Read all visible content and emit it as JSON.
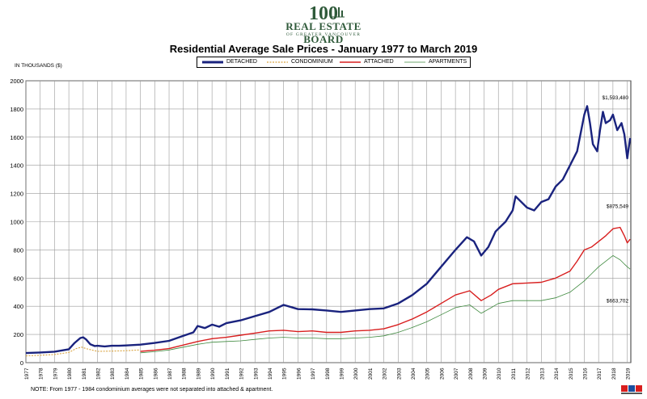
{
  "logo": {
    "mark": "100",
    "wordmark": "REAL ESTATE BOARD",
    "subtext": "OF GREATER VANCOUVER"
  },
  "title": "Residential Average Sale Prices  -  January 1977 to March 2019",
  "units_label": "IN THOUSANDS ($)",
  "note": "NOTE:  From 1977 - 1984 condominium averages were not separated into attached & apartment.",
  "colors": {
    "detached": "#1a237e",
    "condominium": "#d9a441",
    "attached": "#d81e1e",
    "apartments": "#3f8a3f",
    "grid": "#9a9a9a"
  },
  "chart_data": {
    "type": "line",
    "title": "Residential Average Sale Prices  -  January 1977 to March 2019",
    "xlabel": "",
    "ylabel": "IN THOUSANDS ($)",
    "xlim": [
      1977,
      2019.25
    ],
    "ylim": [
      0,
      2000
    ],
    "yticks": [
      0,
      200,
      400,
      600,
      800,
      1000,
      1200,
      1400,
      1600,
      1800,
      2000
    ],
    "xtick_labels": [
      "1977",
      "1978",
      "1979",
      "1980",
      "1981",
      "1982",
      "1983",
      "1984",
      "1985",
      "1986",
      "1987",
      "1988",
      "1989",
      "1990",
      "1991",
      "1992",
      "1993",
      "1994",
      "1995",
      "1996",
      "1997",
      "1998",
      "1999",
      "2000",
      "2001",
      "2002",
      "2003",
      "2004",
      "2005",
      "2006",
      "2007",
      "2008",
      "2009",
      "2010",
      "2011",
      "2012",
      "2013",
      "2014",
      "2015",
      "2016",
      "2017",
      "2018",
      "2019"
    ],
    "grid": true,
    "legend_position": "top-center",
    "annotations": [
      {
        "text": "$1,593,480",
        "x": 2019.2,
        "y": 1593.48
      },
      {
        "text": "$875,549",
        "x": 2019.2,
        "y": 875.549
      },
      {
        "text": "$663,702",
        "x": 2019.2,
        "y": 663.702
      }
    ],
    "series": [
      {
        "name": "DETACHED",
        "style": "solid-thick",
        "color": "#1a237e",
        "x": [
          1977,
          1978,
          1979,
          1980,
          1980.4,
          1980.8,
          1981,
          1981.2,
          1981.5,
          1981.8,
          1982,
          1982.5,
          1983,
          1983.5,
          1984,
          1985,
          1986,
          1987,
          1988,
          1988.7,
          1989,
          1989.5,
          1990,
          1990.5,
          1991,
          1992,
          1993,
          1994,
          1994.6,
          1995,
          1996,
          1997,
          1998,
          1999,
          2000,
          2001,
          2002,
          2003,
          2004,
          2005,
          2006,
          2007,
          2007.8,
          2008.3,
          2008.8,
          2009.3,
          2009.8,
          2010,
          2010.5,
          2011,
          2011.2,
          2011.5,
          2012,
          2012.5,
          2013,
          2013.5,
          2014,
          2014.5,
          2015,
          2015.5,
          2016,
          2016.2,
          2016.4,
          2016.6,
          2016.9,
          2017.1,
          2017.3,
          2017.5,
          2017.8,
          2018,
          2018.3,
          2018.6,
          2018.8,
          2019,
          2019.2
        ],
        "values": [
          68,
          72,
          78,
          95,
          140,
          175,
          180,
          165,
          130,
          118,
          120,
          115,
          120,
          120,
          122,
          128,
          140,
          155,
          190,
          215,
          260,
          245,
          270,
          255,
          280,
          300,
          330,
          360,
          390,
          410,
          380,
          378,
          370,
          360,
          370,
          380,
          385,
          420,
          480,
          560,
          680,
          800,
          890,
          860,
          760,
          820,
          930,
          950,
          1000,
          1080,
          1180,
          1150,
          1100,
          1080,
          1140,
          1160,
          1250,
          1300,
          1400,
          1500,
          1760,
          1820,
          1700,
          1550,
          1500,
          1650,
          1780,
          1700,
          1720,
          1760,
          1650,
          1700,
          1620,
          1450,
          1593.48
        ]
      },
      {
        "name": "CONDOMINIUM",
        "style": "dotted",
        "color": "#d9a441",
        "x": [
          1977,
          1978,
          1979,
          1980,
          1980.5,
          1980.9,
          1981.2,
          1981.6,
          1982,
          1983,
          1984,
          1984.9
        ],
        "values": [
          48,
          52,
          58,
          72,
          100,
          110,
          100,
          90,
          80,
          82,
          85,
          90
        ]
      },
      {
        "name": "ATTACHED",
        "style": "solid",
        "color": "#d81e1e",
        "x": [
          1985,
          1986,
          1987,
          1988,
          1989,
          1990,
          1991,
          1992,
          1993,
          1994,
          1995,
          1996,
          1997,
          1998,
          1999,
          2000,
          2001,
          2002,
          2003,
          2004,
          2005,
          2006,
          2007,
          2008,
          2008.8,
          2009.5,
          2010,
          2011,
          2012,
          2013,
          2014,
          2015,
          2015.5,
          2016,
          2016.5,
          2017,
          2017.5,
          2018,
          2018.5,
          2018.8,
          2019,
          2019.2
        ],
        "values": [
          80,
          88,
          100,
          125,
          150,
          170,
          180,
          195,
          210,
          225,
          230,
          220,
          225,
          215,
          215,
          225,
          230,
          240,
          270,
          310,
          360,
          420,
          480,
          510,
          440,
          480,
          520,
          560,
          565,
          570,
          600,
          650,
          720,
          800,
          820,
          860,
          900,
          950,
          960,
          900,
          850,
          875.549
        ]
      },
      {
        "name": "APARTMENTS",
        "style": "solid-thin",
        "color": "#3f8a3f",
        "x": [
          1985,
          1986,
          1987,
          1988,
          1989,
          1990,
          1991,
          1992,
          1993,
          1994,
          1995,
          1996,
          1997,
          1998,
          1999,
          2000,
          2001,
          2002,
          2003,
          2004,
          2005,
          2006,
          2007,
          2008,
          2008.8,
          2009.5,
          2010,
          2011,
          2012,
          2013,
          2014,
          2015,
          2015.5,
          2016,
          2016.5,
          2017,
          2017.5,
          2018,
          2018.5,
          2018.8,
          2019,
          2019.2
        ],
        "values": [
          70,
          78,
          90,
          110,
          130,
          145,
          150,
          155,
          165,
          175,
          180,
          175,
          175,
          170,
          170,
          175,
          180,
          190,
          215,
          250,
          290,
          340,
          390,
          410,
          350,
          390,
          420,
          440,
          440,
          440,
          460,
          500,
          540,
          580,
          630,
          680,
          720,
          760,
          730,
          700,
          680,
          663.702
        ]
      }
    ]
  }
}
